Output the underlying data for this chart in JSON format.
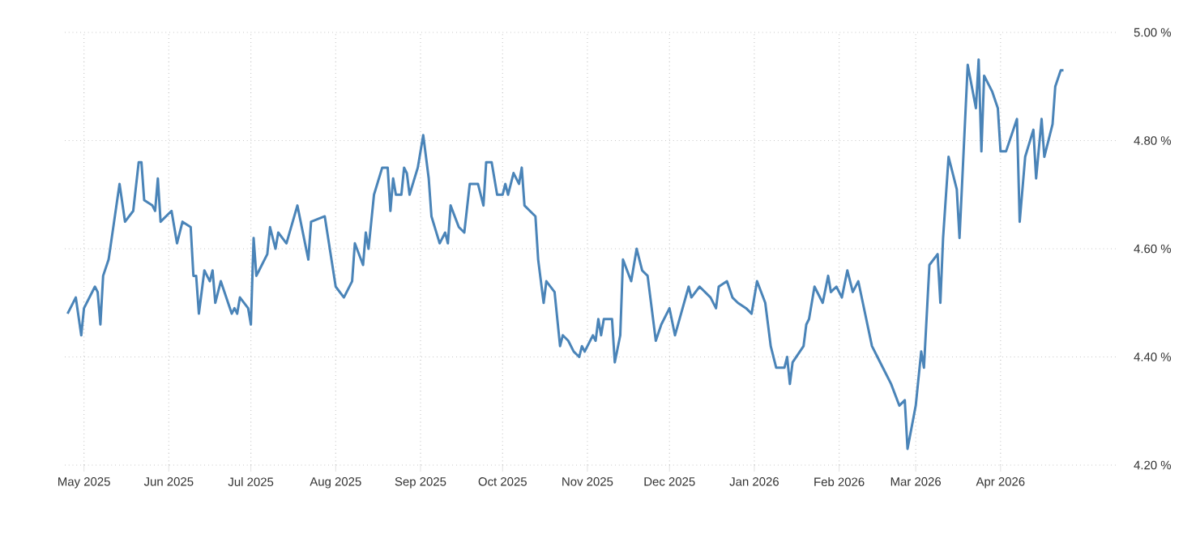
{
  "chart_data": {
    "type": "line",
    "color": "#4a84b8",
    "grid": true,
    "marker": "none",
    "line_style": "solid",
    "xlim": [
      "2025-04-24",
      "2026-05-14"
    ],
    "xticks": [
      {
        "value": "2025-05-01",
        "label": "May 2025"
      },
      {
        "value": "2025-06-01",
        "label": "Jun 2025"
      },
      {
        "value": "2025-07-01",
        "label": "Jul 2025"
      },
      {
        "value": "2025-08-01",
        "label": "Aug 2025"
      },
      {
        "value": "2025-09-01",
        "label": "Sep 2025"
      },
      {
        "value": "2025-10-01",
        "label": "Oct 2025"
      },
      {
        "value": "2025-11-01",
        "label": "Nov 2025"
      },
      {
        "value": "2025-12-01",
        "label": "Dec 2025"
      },
      {
        "value": "2026-01-01",
        "label": "Jan 2026"
      },
      {
        "value": "2026-02-01",
        "label": "Feb 2026"
      },
      {
        "value": "2026-03-01",
        "label": "Mar 2026"
      },
      {
        "value": "2026-04-01",
        "label": "Apr 2026"
      }
    ],
    "ylim": [
      4.2,
      5.0
    ],
    "yticks": [
      {
        "value": 4.2,
        "label": "4.20 %"
      },
      {
        "value": 4.4,
        "label": "4.40 %"
      },
      {
        "value": 4.6,
        "label": "4.60 %"
      },
      {
        "value": 4.8,
        "label": "4.80 %"
      },
      {
        "value": 5.0,
        "label": "5.00 %"
      }
    ],
    "x": [
      "2025-04-25",
      "2025-04-28",
      "2025-04-30",
      "2025-05-01",
      "2025-05-05",
      "2025-05-06",
      "2025-05-07",
      "2025-05-08",
      "2025-05-10",
      "2025-05-14",
      "2025-05-16",
      "2025-05-19",
      "2025-05-21",
      "2025-05-22",
      "2025-05-23",
      "2025-05-26",
      "2025-05-27",
      "2025-05-28",
      "2025-05-29",
      "2025-06-02",
      "2025-06-04",
      "2025-06-06",
      "2025-06-09",
      "2025-06-10",
      "2025-06-11",
      "2025-06-12",
      "2025-06-14",
      "2025-06-16",
      "2025-06-17",
      "2025-06-18",
      "2025-06-20",
      "2025-06-24",
      "2025-06-25",
      "2025-06-26",
      "2025-06-27",
      "2025-06-30",
      "2025-07-01",
      "2025-07-02",
      "2025-07-03",
      "2025-07-04",
      "2025-07-07",
      "2025-07-08",
      "2025-07-10",
      "2025-07-11",
      "2025-07-14",
      "2025-07-18",
      "2025-07-22",
      "2025-07-23",
      "2025-07-28",
      "2025-08-01",
      "2025-08-04",
      "2025-08-07",
      "2025-08-08",
      "2025-08-11",
      "2025-08-12",
      "2025-08-13",
      "2025-08-15",
      "2025-08-18",
      "2025-08-20",
      "2025-08-21",
      "2025-08-22",
      "2025-08-23",
      "2025-08-25",
      "2025-08-26",
      "2025-08-27",
      "2025-08-28",
      "2025-08-31",
      "2025-09-02",
      "2025-09-04",
      "2025-09-05",
      "2025-09-08",
      "2025-09-10",
      "2025-09-11",
      "2025-09-12",
      "2025-09-15",
      "2025-09-17",
      "2025-09-19",
      "2025-09-22",
      "2025-09-24",
      "2025-09-25",
      "2025-09-27",
      "2025-09-29",
      "2025-10-01",
      "2025-10-02",
      "2025-10-03",
      "2025-10-05",
      "2025-10-07",
      "2025-10-08",
      "2025-10-09",
      "2025-10-13",
      "2025-10-14",
      "2025-10-16",
      "2025-10-17",
      "2025-10-20",
      "2025-10-22",
      "2025-10-23",
      "2025-10-25",
      "2025-10-27",
      "2025-10-29",
      "2025-10-30",
      "2025-10-31",
      "2025-11-03",
      "2025-11-04",
      "2025-11-05",
      "2025-11-06",
      "2025-11-07",
      "2025-11-10",
      "2025-11-11",
      "2025-11-13",
      "2025-11-14",
      "2025-11-17",
      "2025-11-19",
      "2025-11-21",
      "2025-11-23",
      "2025-11-26",
      "2025-11-28",
      "2025-12-01",
      "2025-12-03",
      "2025-12-08",
      "2025-12-09",
      "2025-12-12",
      "2025-12-16",
      "2025-12-18",
      "2025-12-19",
      "2025-12-22",
      "2025-12-24",
      "2025-12-26",
      "2025-12-29",
      "2025-12-31",
      "2026-01-02",
      "2026-01-05",
      "2026-01-07",
      "2026-01-09",
      "2026-01-12",
      "2026-01-13",
      "2026-01-14",
      "2026-01-15",
      "2026-01-19",
      "2026-01-20",
      "2026-01-21",
      "2026-01-23",
      "2026-01-26",
      "2026-01-28",
      "2026-01-29",
      "2026-01-31",
      "2026-02-02",
      "2026-02-04",
      "2026-02-06",
      "2026-02-08",
      "2026-02-13",
      "2026-02-15",
      "2026-02-18",
      "2026-02-20",
      "2026-02-23",
      "2026-02-25",
      "2026-02-26",
      "2026-03-01",
      "2026-03-03",
      "2026-03-04",
      "2026-03-06",
      "2026-03-09",
      "2026-03-10",
      "2026-03-11",
      "2026-03-13",
      "2026-03-16",
      "2026-03-17",
      "2026-03-20",
      "2026-03-23",
      "2026-03-24",
      "2026-03-25",
      "2026-03-26",
      "2026-03-29",
      "2026-03-31",
      "2026-04-01",
      "2026-04-03",
      "2026-04-07",
      "2026-04-08",
      "2026-04-10",
      "2026-04-13",
      "2026-04-14",
      "2026-04-16",
      "2026-04-17",
      "2026-04-20",
      "2026-04-21",
      "2026-04-23",
      "2026-04-24"
    ],
    "values": [
      4.48,
      4.51,
      4.44,
      4.49,
      4.53,
      4.52,
      4.46,
      4.55,
      4.58,
      4.72,
      4.65,
      4.67,
      4.76,
      4.76,
      4.69,
      4.68,
      4.67,
      4.73,
      4.65,
      4.67,
      4.61,
      4.65,
      4.64,
      4.55,
      4.55,
      4.48,
      4.56,
      4.54,
      4.56,
      4.5,
      4.54,
      4.48,
      4.49,
      4.48,
      4.51,
      4.49,
      4.46,
      4.62,
      4.55,
      4.56,
      4.59,
      4.64,
      4.6,
      4.63,
      4.61,
      4.68,
      4.58,
      4.65,
      4.66,
      4.53,
      4.51,
      4.54,
      4.61,
      4.57,
      4.63,
      4.6,
      4.7,
      4.75,
      4.75,
      4.67,
      4.73,
      4.7,
      4.7,
      4.75,
      4.74,
      4.7,
      4.75,
      4.81,
      4.73,
      4.66,
      4.61,
      4.63,
      4.61,
      4.68,
      4.64,
      4.63,
      4.72,
      4.72,
      4.68,
      4.76,
      4.76,
      4.7,
      4.7,
      4.72,
      4.7,
      4.74,
      4.72,
      4.75,
      4.68,
      4.66,
      4.58,
      4.5,
      4.54,
      4.52,
      4.42,
      4.44,
      4.43,
      4.41,
      4.4,
      4.42,
      4.41,
      4.44,
      4.43,
      4.47,
      4.44,
      4.47,
      4.47,
      4.39,
      4.44,
      4.58,
      4.54,
      4.6,
      4.56,
      4.55,
      4.43,
      4.46,
      4.49,
      4.44,
      4.53,
      4.51,
      4.53,
      4.51,
      4.49,
      4.53,
      4.54,
      4.51,
      4.5,
      4.49,
      4.48,
      4.54,
      4.5,
      4.42,
      4.38,
      4.38,
      4.4,
      4.35,
      4.39,
      4.42,
      4.46,
      4.47,
      4.53,
      4.5,
      4.55,
      4.52,
      4.53,
      4.51,
      4.56,
      4.52,
      4.54,
      4.42,
      4.4,
      4.37,
      4.35,
      4.31,
      4.32,
      4.23,
      4.31,
      4.41,
      4.38,
      4.57,
      4.59,
      4.5,
      4.62,
      4.77,
      4.71,
      4.62,
      4.94,
      4.86,
      4.95,
      4.78,
      4.92,
      4.89,
      4.86,
      4.78,
      4.78,
      4.84,
      4.65,
      4.77,
      4.82,
      4.73,
      4.84,
      4.77,
      4.83,
      4.9,
      4.93,
      4.93
    ]
  }
}
